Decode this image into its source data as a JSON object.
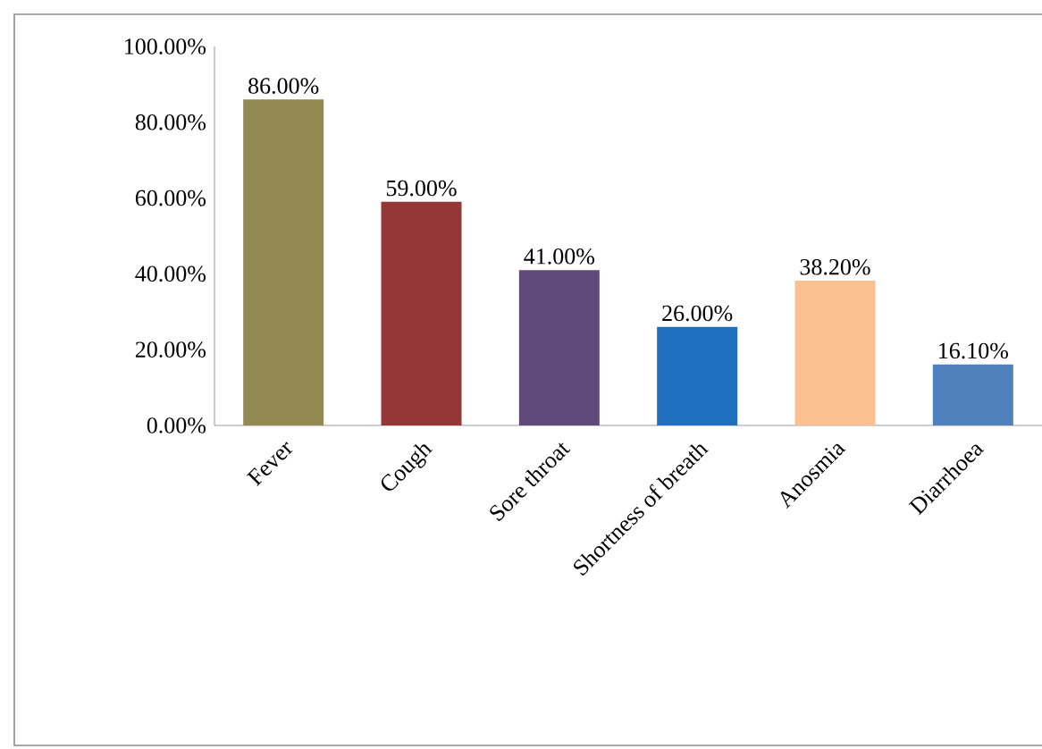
{
  "chart_data": {
    "type": "bar",
    "categories": [
      "Fever",
      "Cough",
      "Sore throat",
      "Shortness of breath",
      "Anosmia",
      "Diarrhoea"
    ],
    "values": [
      86.0,
      59.0,
      41.0,
      26.0,
      38.2,
      16.1
    ],
    "value_labels": [
      "86.00%",
      "59.00%",
      "41.00%",
      "26.00%",
      "38.20%",
      "16.10%"
    ],
    "colors": [
      "#938953",
      "#953735",
      "#604a7b",
      "#1f6fbf",
      "#fac08f",
      "#4f81bd"
    ],
    "ylim": [
      0,
      100
    ],
    "yticks": [
      {
        "value": 0,
        "label": "0.00%"
      },
      {
        "value": 20,
        "label": "20.00%"
      },
      {
        "value": 40,
        "label": "40.00%"
      },
      {
        "value": 60,
        "label": "60.00%"
      },
      {
        "value": 80,
        "label": "80.00%"
      },
      {
        "value": 100,
        "label": "100.00%"
      }
    ],
    "grid": false
  }
}
